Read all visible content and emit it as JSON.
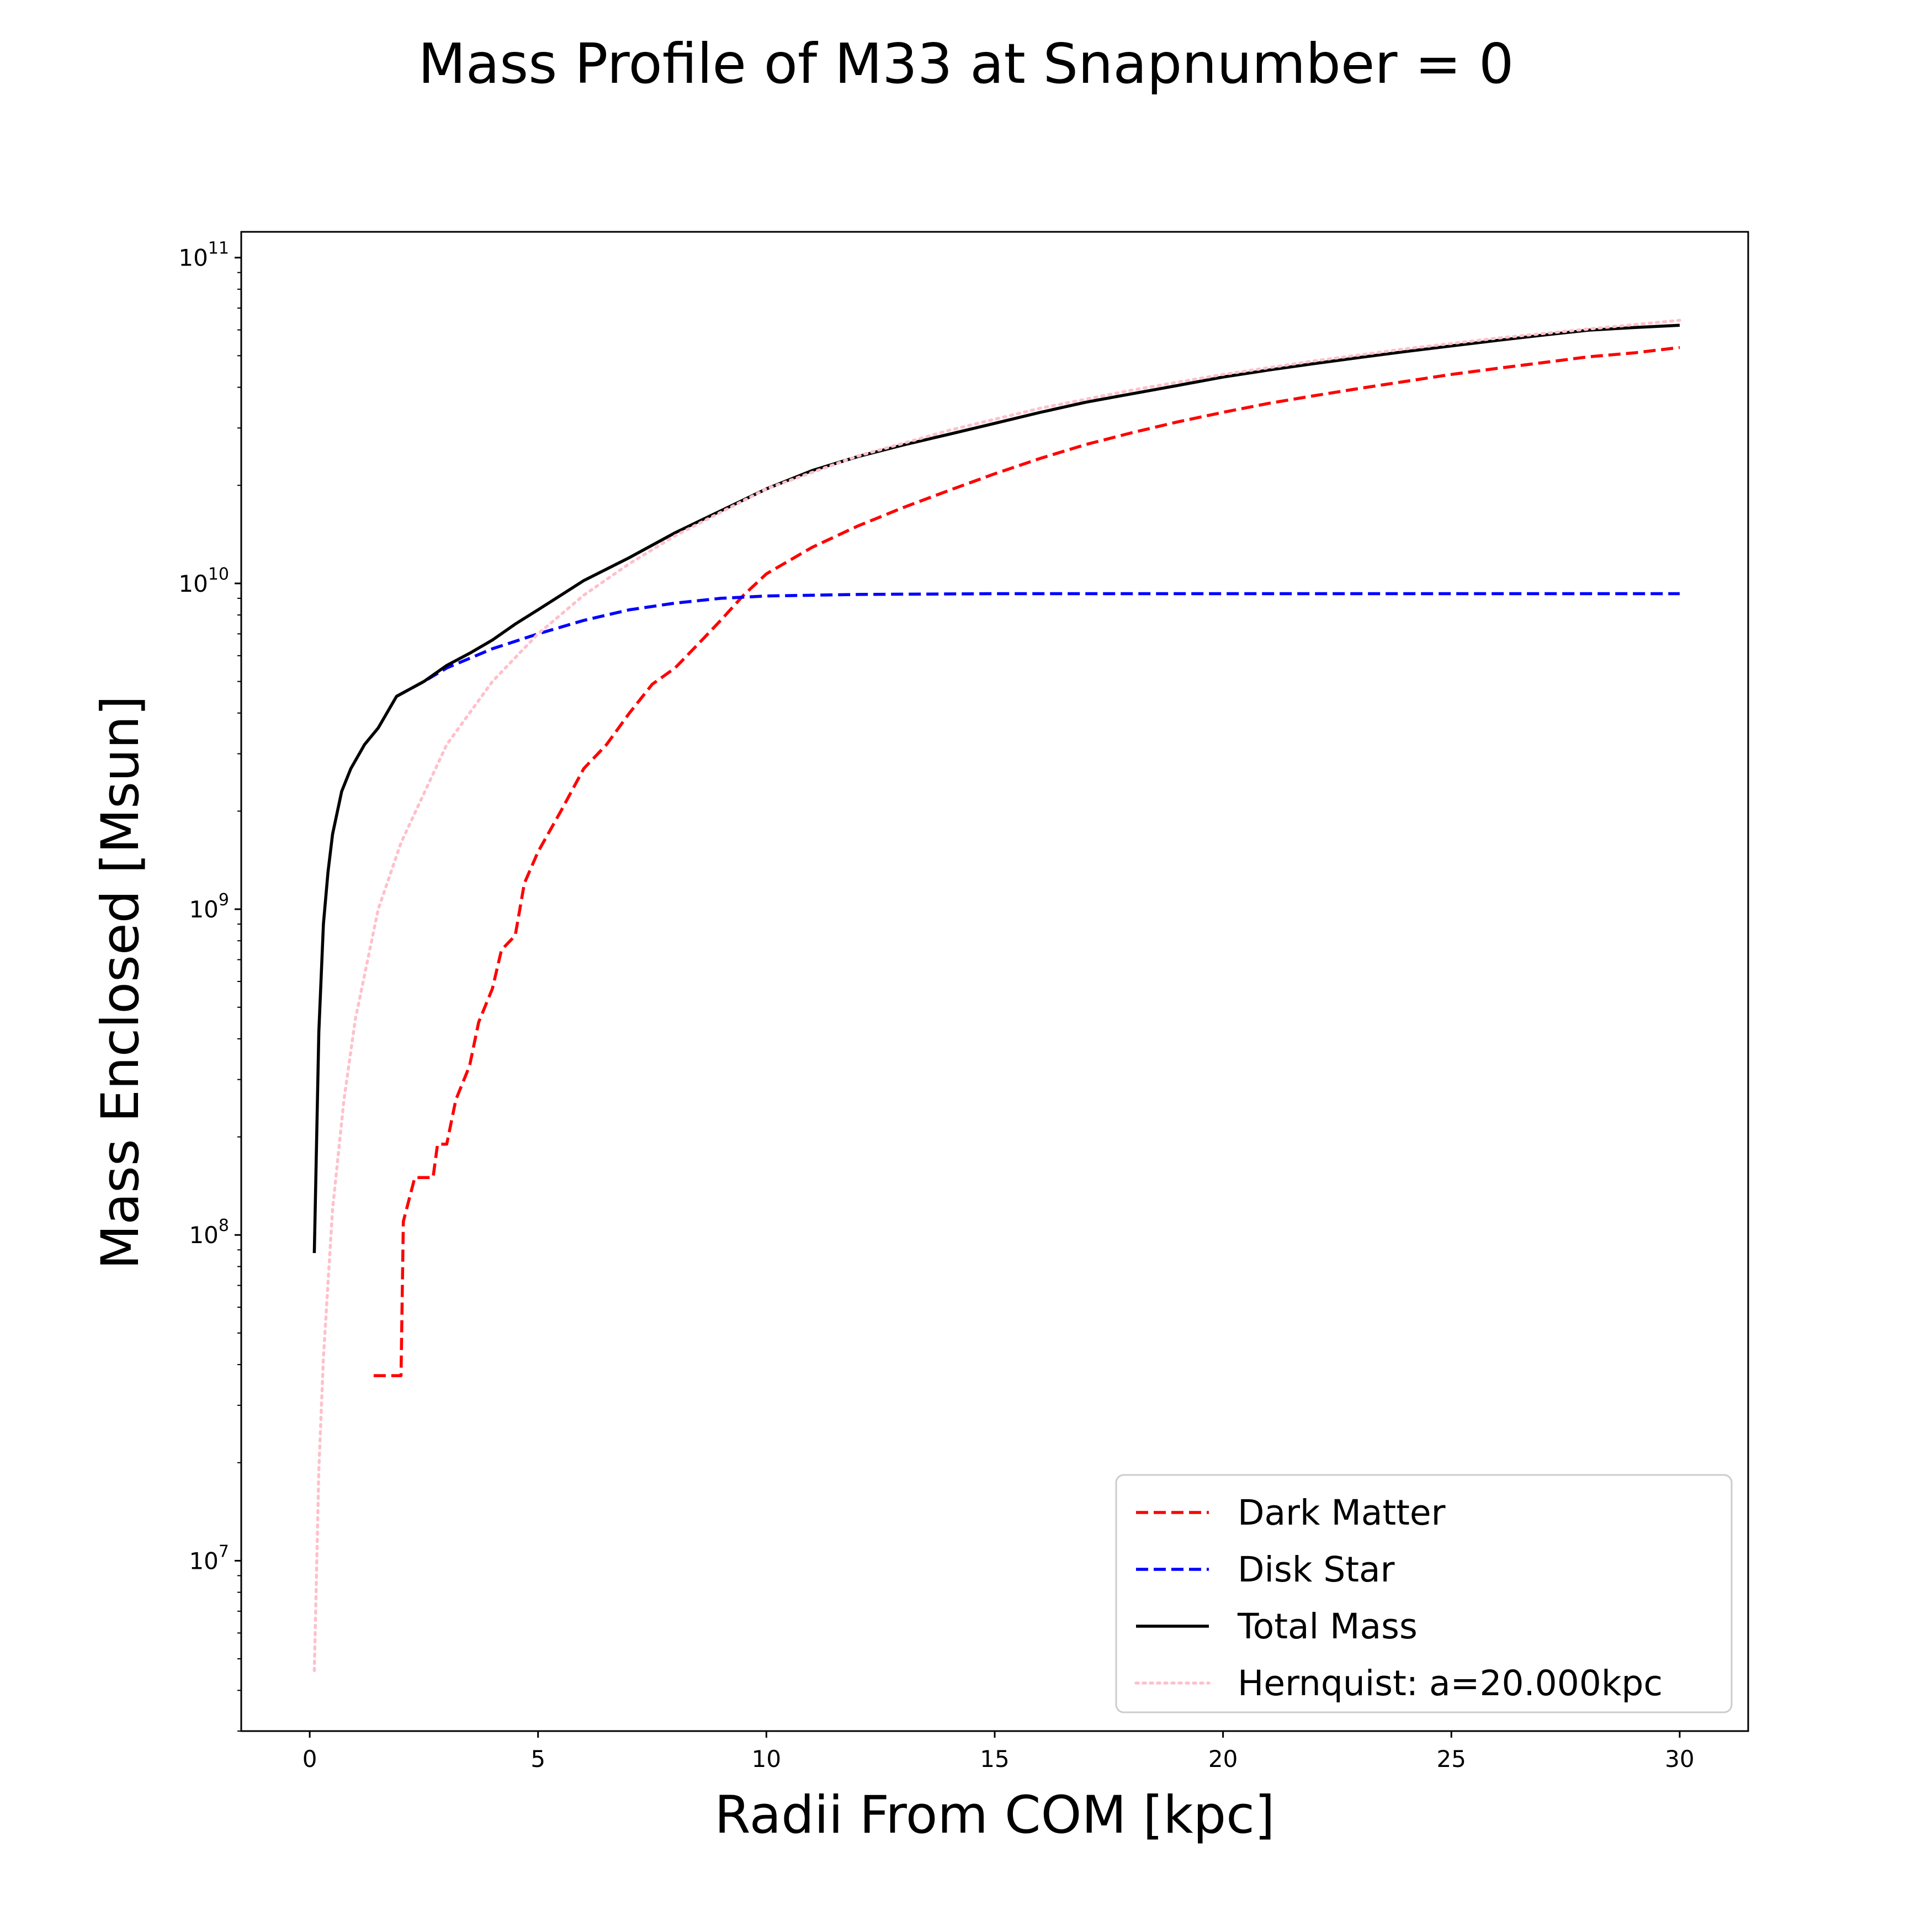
{
  "chart_data": {
    "type": "line",
    "title": "Mass Profile of M33 at Snapnumber = 0",
    "xlabel": "Radii From COM [kpc]",
    "ylabel": "Mass Enclosed [Msun]",
    "xlim": [
      -1.5,
      31.5
    ],
    "ylim": [
      3000000.0,
      120000000000.0
    ],
    "yscale": "log",
    "grid": false,
    "legend_position": "lower-right",
    "x_ticks": [
      {
        "value": 0,
        "label": "0"
      },
      {
        "value": 5,
        "label": "5"
      },
      {
        "value": 10,
        "label": "10"
      },
      {
        "value": 15,
        "label": "15"
      },
      {
        "value": 20,
        "label": "20"
      },
      {
        "value": 25,
        "label": "25"
      },
      {
        "value": 30,
        "label": "30"
      }
    ],
    "y_ticks": [
      {
        "value": 10000000.0,
        "base": "10",
        "exp": "7"
      },
      {
        "value": 100000000.0,
        "base": "10",
        "exp": "8"
      },
      {
        "value": 1000000000.0,
        "base": "10",
        "exp": "9"
      },
      {
        "value": 10000000000.0,
        "base": "10",
        "exp": "10"
      },
      {
        "value": 100000000000.0,
        "base": "10",
        "exp": "11"
      }
    ],
    "series": [
      {
        "name": "Dark Matter",
        "color": "#ff0000",
        "style": "dashed",
        "points": [
          [
            1.4,
            37000000.0
          ],
          [
            2.0,
            37000000.0
          ],
          [
            2.05,
            110000000.0
          ],
          [
            2.3,
            150000000.0
          ],
          [
            2.7,
            150000000.0
          ],
          [
            2.8,
            190000000.0
          ],
          [
            3.0,
            190000000.0
          ],
          [
            3.2,
            260000000.0
          ],
          [
            3.5,
            330000000.0
          ],
          [
            3.7,
            450000000.0
          ],
          [
            4.0,
            570000000.0
          ],
          [
            4.2,
            750000000.0
          ],
          [
            4.5,
            830000000.0
          ],
          [
            4.7,
            1200000000.0
          ],
          [
            5.0,
            1500000000.0
          ],
          [
            5.5,
            2000000000.0
          ],
          [
            6.0,
            2700000000.0
          ],
          [
            6.5,
            3200000000.0
          ],
          [
            7.0,
            4000000000.0
          ],
          [
            7.5,
            4900000000.0
          ],
          [
            8.0,
            5500000000.0
          ],
          [
            8.5,
            6500000000.0
          ],
          [
            9.0,
            7700000000.0
          ],
          [
            9.5,
            9200000000.0
          ],
          [
            10.0,
            10700000000.0
          ],
          [
            11.0,
            12900000000.0
          ],
          [
            12.0,
            15000000000.0
          ],
          [
            13.0,
            17100000000.0
          ],
          [
            14.0,
            19300000000.0
          ],
          [
            15.0,
            21700000000.0
          ],
          [
            16.0,
            24200000000.0
          ],
          [
            17.0,
            26700000000.0
          ],
          [
            18.0,
            29000000000.0
          ],
          [
            19.0,
            31300000000.0
          ],
          [
            20.0,
            33500000000.0
          ],
          [
            21.0,
            35700000000.0
          ],
          [
            22.0,
            37700000000.0
          ],
          [
            23.0,
            39700000000.0
          ],
          [
            24.0,
            41700000000.0
          ],
          [
            25.0,
            43800000000.0
          ],
          [
            26.0,
            45700000000.0
          ],
          [
            27.0,
            47600000000.0
          ],
          [
            28.0,
            49600000000.0
          ],
          [
            29.0,
            51000000000.0
          ],
          [
            30.0,
            53000000000.0
          ]
        ]
      },
      {
        "name": "Disk Star",
        "color": "#0000ff",
        "style": "dashed",
        "points": [
          [
            1.9,
            4500000000.0
          ],
          [
            2.5,
            5000000000.0
          ],
          [
            3.0,
            5500000000.0
          ],
          [
            4.0,
            6300000000.0
          ],
          [
            5.0,
            7000000000.0
          ],
          [
            6.0,
            7700000000.0
          ],
          [
            7.0,
            8300000000.0
          ],
          [
            8.0,
            8700000000.0
          ],
          [
            9.0,
            9000000000.0
          ],
          [
            10.0,
            9150000000.0
          ],
          [
            12.0,
            9250000000.0
          ],
          [
            15.0,
            9300000000.0
          ],
          [
            20.0,
            9300000000.0
          ],
          [
            25.0,
            9300000000.0
          ],
          [
            30.0,
            9300000000.0
          ]
        ]
      },
      {
        "name": "Total Mass",
        "color": "#000000",
        "style": "solid",
        "points": [
          [
            0.1,
            88000000.0
          ],
          [
            0.2,
            420000000.0
          ],
          [
            0.3,
            900000000.0
          ],
          [
            0.4,
            1300000000.0
          ],
          [
            0.5,
            1700000000.0
          ],
          [
            0.7,
            2300000000.0
          ],
          [
            0.9,
            2700000000.0
          ],
          [
            1.2,
            3200000000.0
          ],
          [
            1.5,
            3600000000.0
          ],
          [
            1.9,
            4500000000.0
          ],
          [
            2.5,
            5000000000.0
          ],
          [
            3.0,
            5600000000.0
          ],
          [
            3.5,
            6100000000.0
          ],
          [
            4.0,
            6700000000.0
          ],
          [
            4.5,
            7500000000.0
          ],
          [
            5.0,
            8300000000.0
          ],
          [
            5.5,
            9200000000.0
          ],
          [
            6.0,
            10200000000.0
          ],
          [
            7.0,
            12000000000.0
          ],
          [
            8.0,
            14300000000.0
          ],
          [
            9.0,
            16700000000.0
          ],
          [
            10.0,
            19500000000.0
          ],
          [
            11.0,
            22200000000.0
          ],
          [
            12.0,
            24500000000.0
          ],
          [
            13.0,
            26600000000.0
          ],
          [
            14.0,
            28700000000.0
          ],
          [
            15.0,
            31000000000.0
          ],
          [
            16.0,
            33500000000.0
          ],
          [
            17.0,
            36000000000.0
          ],
          [
            18.0,
            38200000000.0
          ],
          [
            19.0,
            40500000000.0
          ],
          [
            20.0,
            43000000000.0
          ],
          [
            21.0,
            45200000000.0
          ],
          [
            22.0,
            47300000000.0
          ],
          [
            23.0,
            49400000000.0
          ],
          [
            24.0,
            51500000000.0
          ],
          [
            25.0,
            53600000000.0
          ],
          [
            26.0,
            55700000000.0
          ],
          [
            27.0,
            57800000000.0
          ],
          [
            28.0,
            59900000000.0
          ],
          [
            29.0,
            61000000000.0
          ],
          [
            30.0,
            62000000000.0
          ]
        ]
      },
      {
        "name": "Hernquist: a=20.000kpc",
        "color": "#ffc0cb",
        "style": "dotted",
        "points": [
          [
            0.1,
            4600000.0
          ],
          [
            0.2,
            19000000.0
          ],
          [
            0.3,
            42000000.0
          ],
          [
            0.5,
            120000000.0
          ],
          [
            0.75,
            260000000.0
          ],
          [
            1.0,
            460000000.0
          ],
          [
            1.5,
            1000000000.0
          ],
          [
            2.0,
            1600000000.0
          ],
          [
            3.0,
            3200000000.0
          ],
          [
            4.0,
            5000000000.0
          ],
          [
            5.0,
            7000000000.0
          ],
          [
            6.0,
            9200000000.0
          ],
          [
            7.0,
            11500000000.0
          ],
          [
            8.0,
            14000000000.0
          ],
          [
            10.0,
            19500000000.0
          ],
          [
            12.0,
            24600000000.0
          ],
          [
            14.0,
            29500000000.0
          ],
          [
            16.0,
            34500000000.0
          ],
          [
            18.0,
            39200000000.0
          ],
          [
            20.0,
            43800000000.0
          ],
          [
            22.0,
            48200000000.0
          ],
          [
            24.0,
            52500000000.0
          ],
          [
            26.0,
            56600000000.0
          ],
          [
            28.0,
            60400000000.0
          ],
          [
            30.0,
            64200000000.0
          ]
        ]
      }
    ]
  }
}
